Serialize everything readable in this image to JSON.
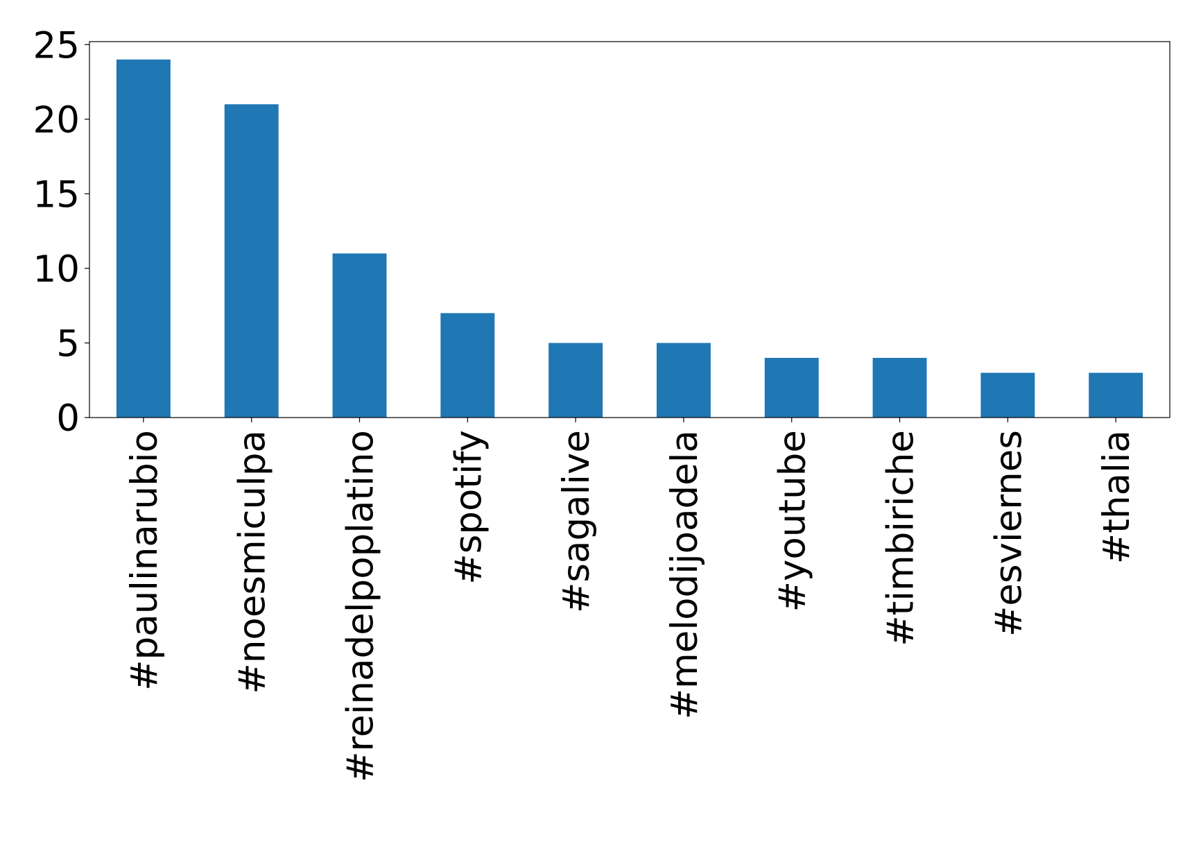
{
  "chart_data": {
    "type": "bar",
    "categories": [
      "#paulinarubio",
      "#noesmiculpa",
      "#reinadelpoplatino",
      "#spotify",
      "#sagalive",
      "#melodijoadela",
      "#youtube",
      "#timbiriche",
      "#esviernes",
      "#thalia"
    ],
    "values": [
      24,
      21,
      11,
      7,
      5,
      5,
      4,
      4,
      3,
      3
    ],
    "color": "#1f77b4",
    "ylim": [
      0,
      25.2
    ],
    "yticks": [
      0,
      5,
      10,
      15,
      20,
      25
    ],
    "grid": false
  }
}
